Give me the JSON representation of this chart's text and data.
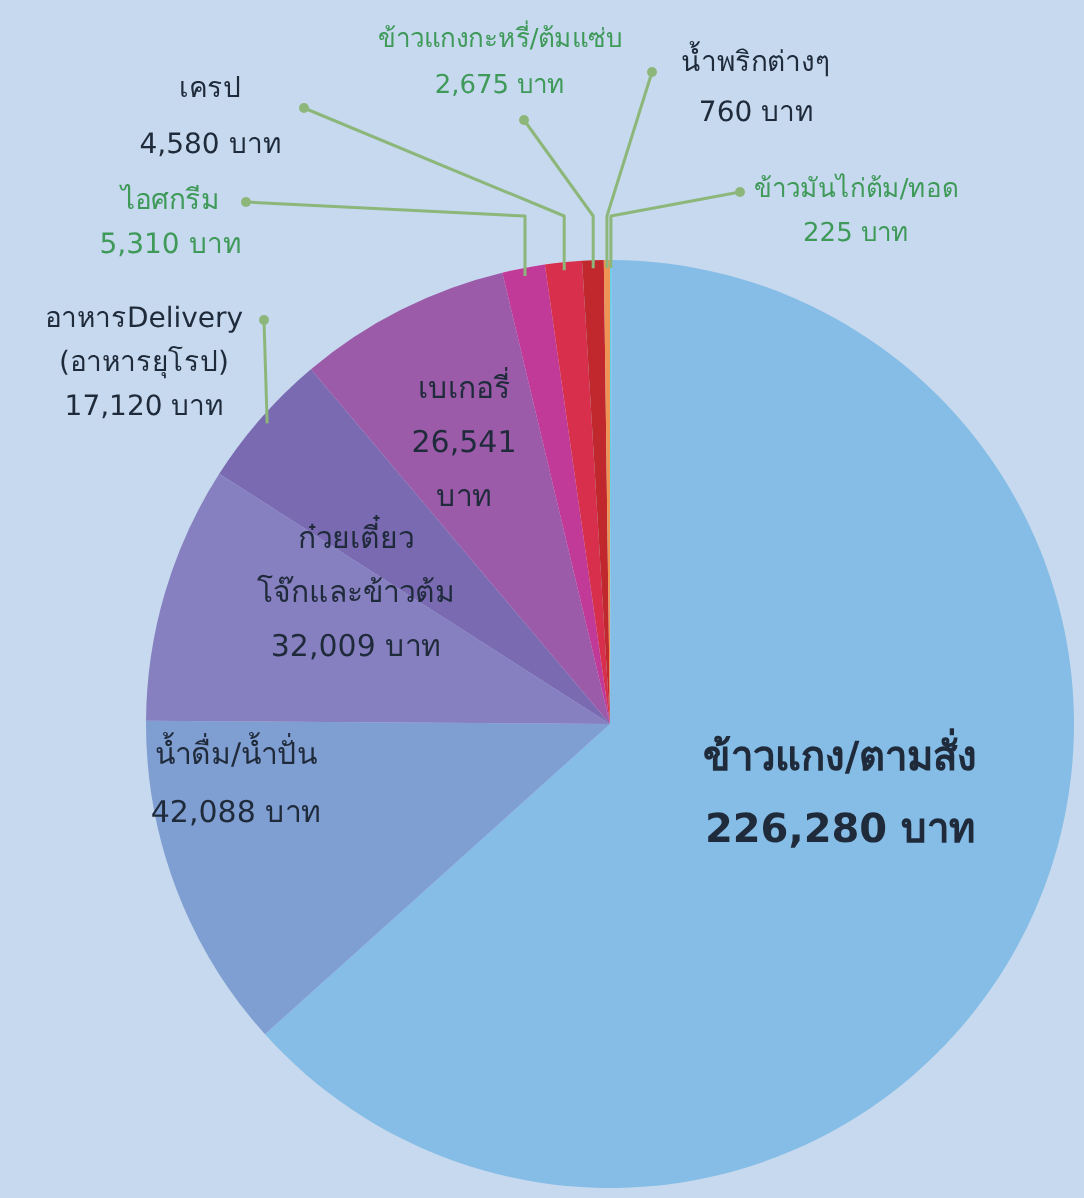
{
  "chart_data": {
    "type": "pie",
    "categories": [
      "ข้าวมันไก่ต้ม/ทอด",
      "ข้าวแกง/ตามสั่ง",
      "น้ำดื่ม/น้ำปั่น",
      "ก๋วยเตี๋ยว โจ๊กและข้าวต้ม",
      "อาหารDelivery (อาหารยุโรป)",
      "เบเกอรี่",
      "ไอศกรีม",
      "เครป",
      "ข้าวแกงกะหรี่/ต้มแซ่บ",
      "น้ำพริกต่างๆ"
    ],
    "values": [
      225,
      226280,
      42088,
      32009,
      17120,
      26541,
      5310,
      4580,
      2675,
      760
    ],
    "colors": [
      "#63d2ea",
      "#86bde6",
      "#7f9ed2",
      "#8780c0",
      "#7a6ab2",
      "#9b5ba9",
      "#c23a98",
      "#d8304c",
      "#c0282e",
      "#f09456"
    ],
    "value_labels": [
      "225 บาท",
      "226,280 บาท",
      "42,088 บาท",
      "32,009 บาท",
      "17,120 บาท",
      "26,541 บาท",
      "5,310 บาท",
      "4,580 บาท",
      "2,675 บาท",
      "760 บาท"
    ]
  }
}
